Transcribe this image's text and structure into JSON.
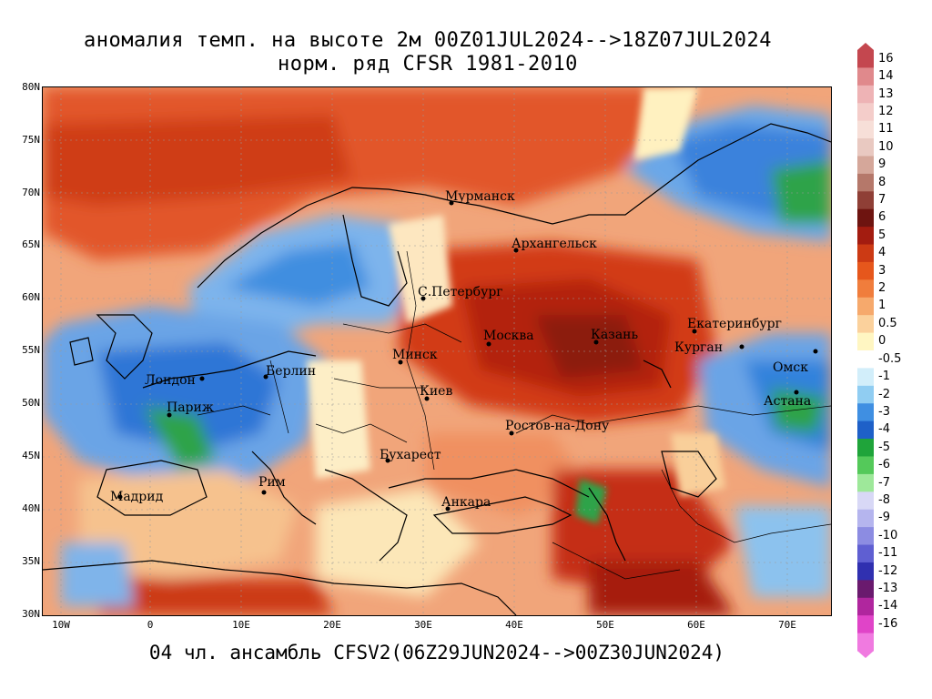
{
  "title": {
    "line1": "аномалия темп. на высоте 2м 00Z01JUL2024-->18Z07JUL2024",
    "line2": "норм. ряд CFSR 1981-2010"
  },
  "footer": "04 чл. ансамбль CFSV2(06Z29JUN2024-->00Z30JUN2024)",
  "map": {
    "lat_labels": [
      "80N",
      "75N",
      "70N",
      "65N",
      "60N",
      "55N",
      "50N",
      "45N",
      "40N",
      "35N",
      "30N"
    ],
    "lon_labels": [
      "10W",
      "0",
      "10E",
      "20E",
      "30E",
      "40E",
      "50E",
      "60E",
      "70E"
    ],
    "cities": [
      {
        "name": "Мурманск"
      },
      {
        "name": "Архангельск"
      },
      {
        "name": "С.Петербург"
      },
      {
        "name": "Москва"
      },
      {
        "name": "Казань"
      },
      {
        "name": "Екатеринбург"
      },
      {
        "name": "Курган"
      },
      {
        "name": "Омск"
      },
      {
        "name": "Астана"
      },
      {
        "name": "Минск"
      },
      {
        "name": "Киев"
      },
      {
        "name": "Берлин"
      },
      {
        "name": "Лондон"
      },
      {
        "name": "Париж"
      },
      {
        "name": "Ростов-на-Дону"
      },
      {
        "name": "Бухарест"
      },
      {
        "name": "Рим"
      },
      {
        "name": "Мадрид"
      },
      {
        "name": "Анкара"
      }
    ]
  },
  "colorbar": {
    "levels": [
      "16",
      "14",
      "13",
      "12",
      "11",
      "10",
      "9",
      "8",
      "7",
      "6",
      "5",
      "4",
      "3",
      "2",
      "1",
      "0.5",
      "0",
      "-0.5",
      "-1",
      "-2",
      "-3",
      "-4",
      "-5",
      "-6",
      "-7",
      "-8",
      "-9",
      "-10",
      "-11",
      "-12",
      "-13",
      "-14",
      "-16"
    ],
    "colors": [
      "#c4474f",
      "#e0898c",
      "#eeb3b5",
      "#f4cdca",
      "#f7dfd8",
      "#e9c9c1",
      "#d5a79a",
      "#b5786a",
      "#8f3f36",
      "#6e1410",
      "#a31c10",
      "#cc3a14",
      "#e6571c",
      "#f07d3c",
      "#f6a96c",
      "#fbd19c",
      "#fff6c2",
      "#ffffff",
      "#d2eefa",
      "#90cdf2",
      "#3f8fe2",
      "#1e60c8",
      "#1fa43a",
      "#54c95a",
      "#9ee89a",
      "#d8d8f6",
      "#b5b5ee",
      "#8c8ce2",
      "#5f5fd2",
      "#3030b0",
      "#6a1a6e",
      "#b0269e",
      "#e044c8",
      "#f07ae0"
    ]
  }
}
